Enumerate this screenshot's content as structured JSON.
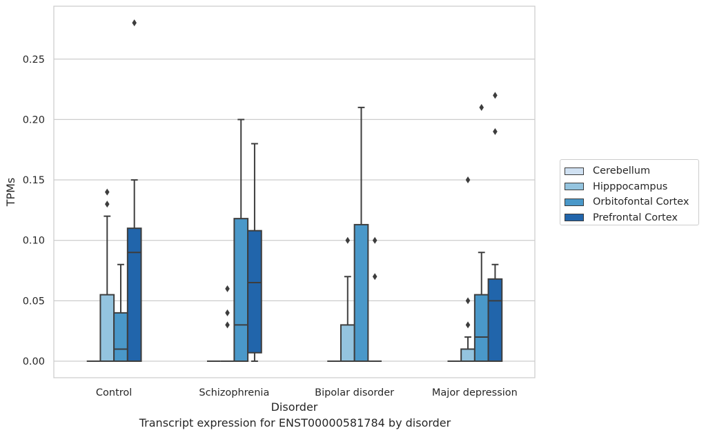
{
  "chart_data": {
    "type": "box",
    "xlabel": "Disorder",
    "ylabel": "TPMs",
    "ylim": [
      -0.0135,
      0.293
    ],
    "yticks": [
      "0.00",
      "0.05",
      "0.10",
      "0.15",
      "0.20",
      "0.25"
    ],
    "categories": [
      "Control",
      "Schizophrenia",
      "Bipolar disorder",
      "Major depression"
    ],
    "grid": true,
    "legend_position": "right",
    "series": [
      {
        "name": "Cerebellum",
        "color": "#d0e1f2",
        "boxes": [
          {
            "q1": 0,
            "median": 0,
            "q3": 0,
            "whisker_low": 0,
            "whisker_high": 0,
            "outliers": []
          },
          {
            "q1": 0,
            "median": 0,
            "q3": 0,
            "whisker_low": 0,
            "whisker_high": 0,
            "outliers": []
          },
          {
            "q1": 0,
            "median": 0,
            "q3": 0,
            "whisker_low": 0,
            "whisker_high": 0,
            "outliers": []
          },
          {
            "q1": 0,
            "median": 0,
            "q3": 0,
            "whisker_low": 0,
            "whisker_high": 0,
            "outliers": []
          }
        ]
      },
      {
        "name": "Hipppocampus",
        "color": "#94c4df",
        "boxes": [
          {
            "q1": 0,
            "median": 0,
            "q3": 0.055,
            "whisker_low": 0,
            "whisker_high": 0.12,
            "outliers": [
              0.13,
              0.14
            ]
          },
          {
            "q1": 0,
            "median": 0,
            "q3": 0,
            "whisker_low": 0,
            "whisker_high": 0,
            "outliers": [
              0.03,
              0.04,
              0.06
            ]
          },
          {
            "q1": 0,
            "median": 0,
            "q3": 0.03,
            "whisker_low": 0,
            "whisker_high": 0.07,
            "outliers": [
              0.1
            ]
          },
          {
            "q1": 0,
            "median": 0,
            "q3": 0.01,
            "whisker_low": 0,
            "whisker_high": 0.02,
            "outliers": [
              0.03,
              0.05,
              0.15
            ]
          }
        ]
      },
      {
        "name": "Orbitofontal Cortex",
        "color": "#4a98c9",
        "boxes": [
          {
            "q1": 0,
            "median": 0.01,
            "q3": 0.04,
            "whisker_low": 0,
            "whisker_high": 0.08,
            "outliers": []
          },
          {
            "q1": 0,
            "median": 0.03,
            "q3": 0.118,
            "whisker_low": 0,
            "whisker_high": 0.2,
            "outliers": []
          },
          {
            "q1": 0,
            "median": 0,
            "q3": 0.113,
            "whisker_low": 0,
            "whisker_high": 0.21,
            "outliers": []
          },
          {
            "q1": 0,
            "median": 0.02,
            "q3": 0.055,
            "whisker_low": 0,
            "whisker_high": 0.09,
            "outliers": [
              0.21
            ]
          }
        ]
      },
      {
        "name": "Prefrontal Cortex",
        "color": "#2165ab",
        "boxes": [
          {
            "q1": 0,
            "median": 0.09,
            "q3": 0.11,
            "whisker_low": 0,
            "whisker_high": 0.15,
            "outliers": [
              0.28
            ]
          },
          {
            "q1": 0.007,
            "median": 0.065,
            "q3": 0.108,
            "whisker_low": 0,
            "whisker_high": 0.18,
            "outliers": []
          },
          {
            "q1": 0,
            "median": 0,
            "q3": 0,
            "whisker_low": 0,
            "whisker_high": 0,
            "outliers": [
              0.07,
              0.1
            ]
          },
          {
            "q1": 0,
            "median": 0.05,
            "q3": 0.068,
            "whisker_low": 0,
            "whisker_high": 0.08,
            "outliers": [
              0.19,
              0.22
            ]
          }
        ]
      }
    ]
  },
  "caption": "Transcript expression for ENST00000581784 by disorder"
}
